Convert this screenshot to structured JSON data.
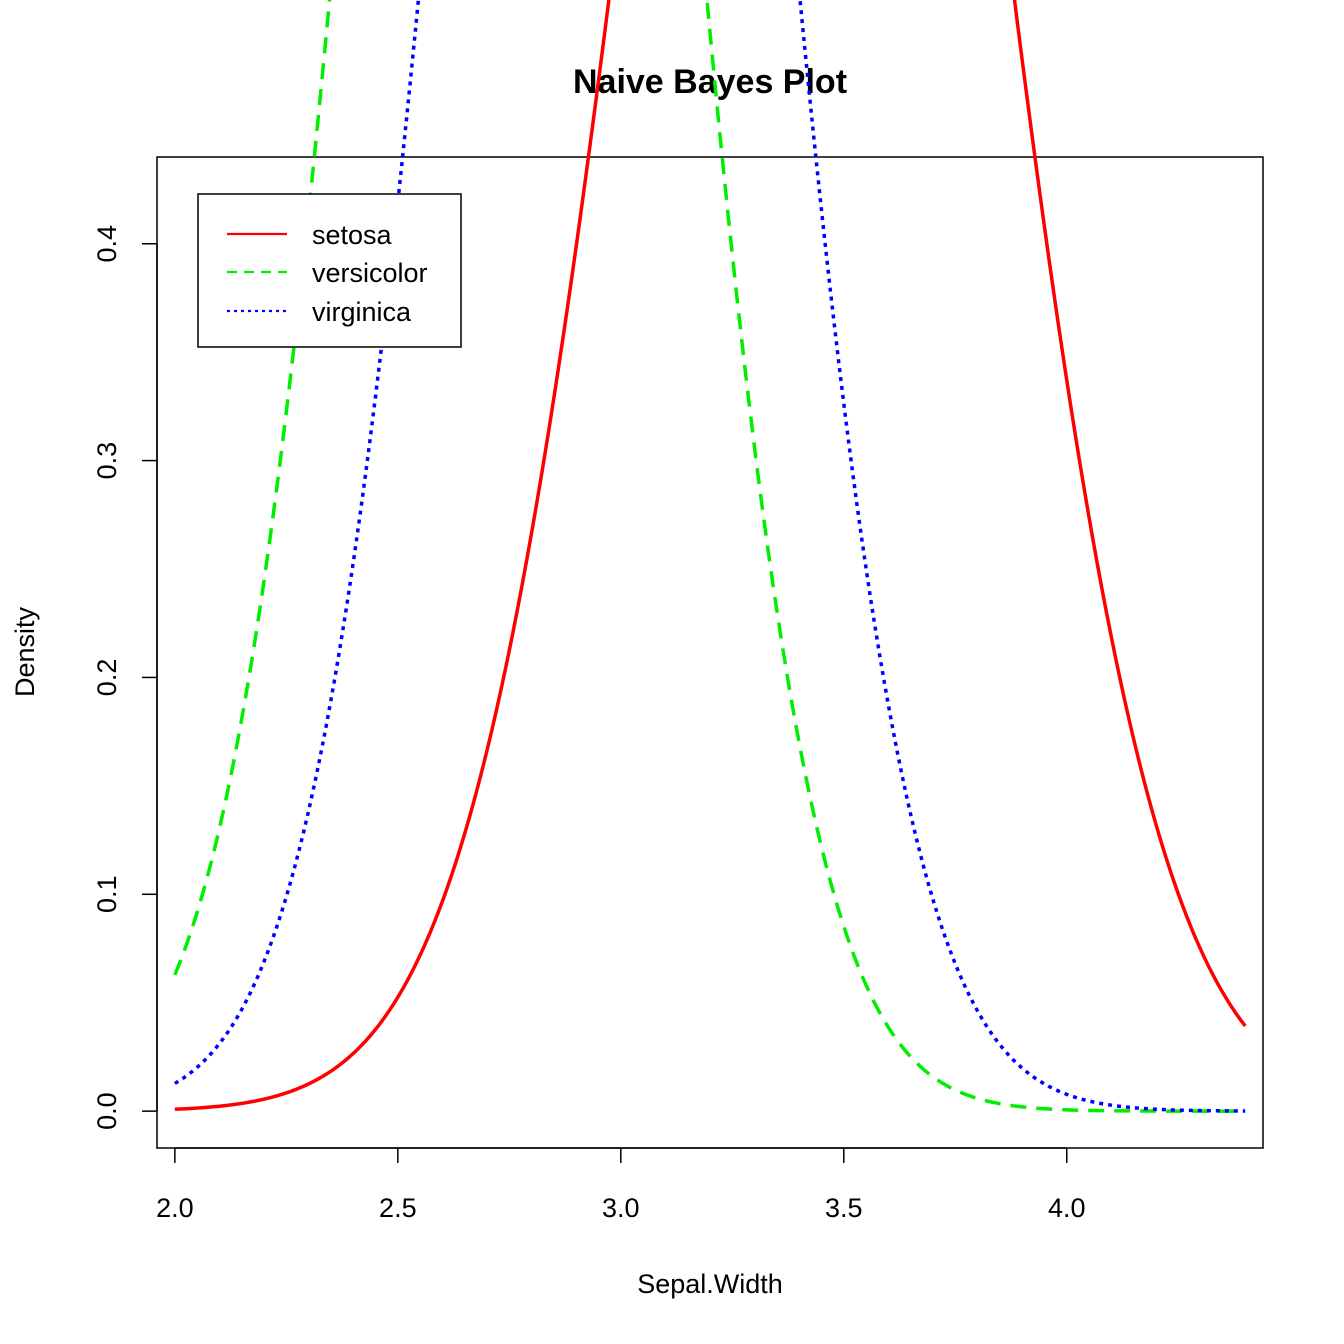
{
  "chart_data": {
    "type": "line",
    "title": "Naive Bayes Plot",
    "xlabel": "Sepal.Width",
    "ylabel": "Density",
    "xlim": [
      1.96,
      4.44
    ],
    "ylim": [
      -0.017,
      0.44
    ],
    "x_ticks": [
      2.0,
      2.5,
      3.0,
      3.5,
      4.0
    ],
    "x_tick_labels": [
      "2.0",
      "2.5",
      "3.0",
      "3.5",
      "4.0"
    ],
    "y_ticks": [
      0.0,
      0.1,
      0.2,
      0.3,
      0.4
    ],
    "y_tick_labels": [
      "0.0",
      "0.1",
      "0.2",
      "0.3",
      "0.4"
    ],
    "x_range": [
      2.0,
      4.4
    ],
    "legend_position": "top-left",
    "grid": false,
    "series": [
      {
        "name": "setosa",
        "distribution": "normal",
        "mean": 3.428,
        "sd": 0.379,
        "color": "#ff0000",
        "line_style": "solid"
      },
      {
        "name": "versicolor",
        "distribution": "normal",
        "mean": 2.77,
        "sd": 0.314,
        "color": "#00ee00",
        "line_style": "dashed"
      },
      {
        "name": "virginica",
        "distribution": "normal",
        "mean": 2.974,
        "sd": 0.322,
        "color": "#0000ff",
        "line_style": "dotted"
      }
    ]
  }
}
